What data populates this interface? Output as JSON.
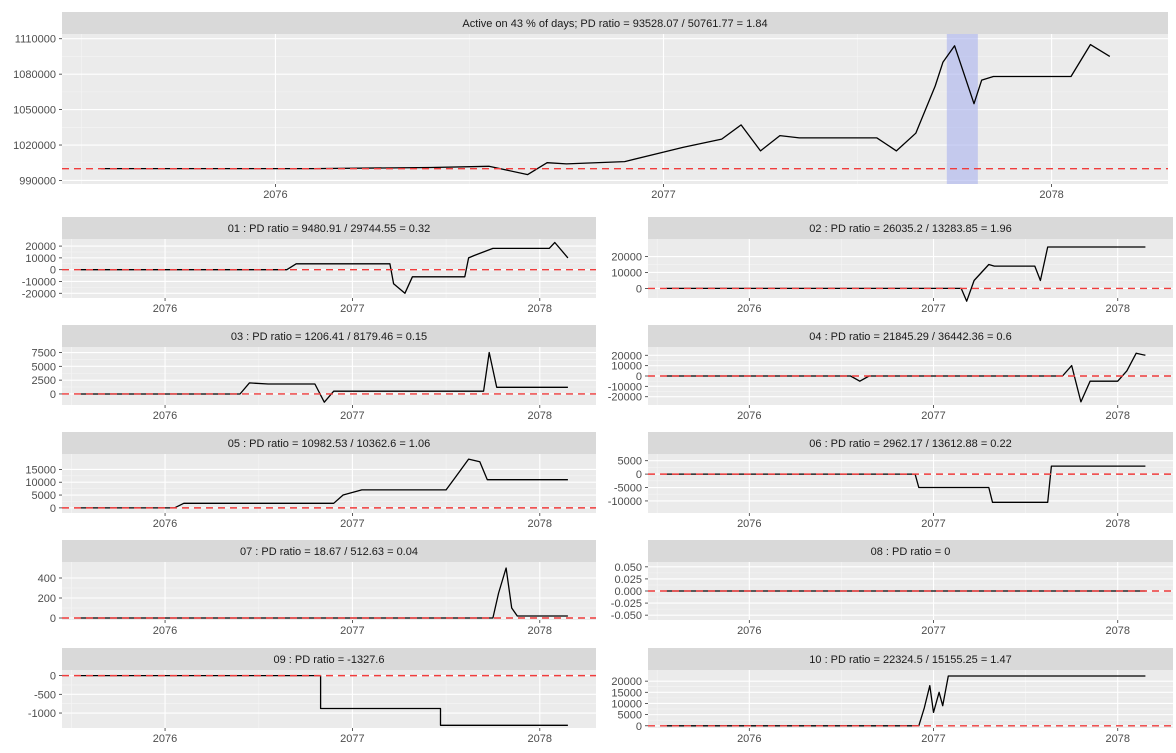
{
  "chart_data": [
    {
      "id": "overall",
      "type": "line",
      "title": "Active on 43 % of days; PD ratio =  93528.07 / 50761.77 = 1.84",
      "xlim": [
        2075.45,
        2078.3
      ],
      "ylim": [
        987000,
        1114000
      ],
      "xticks": [
        2076,
        2077,
        2078
      ],
      "xtick_labels": [
        "2076",
        "2077",
        "2078"
      ],
      "yticks": [
        990000,
        1020000,
        1050000,
        1080000,
        1110000
      ],
      "ytick_labels": [
        "990000",
        "1020000",
        "1050000",
        "1080000",
        "1110000"
      ],
      "baseline": 1000000,
      "highlight_x": [
        2077.73,
        2077.81
      ],
      "x": [
        2075.55,
        2076.1,
        2076.4,
        2076.55,
        2076.65,
        2076.7,
        2076.75,
        2076.9,
        2077.0,
        2077.05,
        2077.15,
        2077.2,
        2077.25,
        2077.3,
        2077.35,
        2077.55,
        2077.6,
        2077.65,
        2077.7,
        2077.72,
        2077.75,
        2077.8,
        2077.82,
        2077.85,
        2078.05,
        2078.1,
        2078.15
      ],
      "y": [
        1000000,
        1000000,
        1001000,
        1002000,
        995000,
        1005000,
        1004000,
        1006000,
        1014000,
        1018000,
        1025000,
        1037000,
        1015000,
        1028000,
        1026000,
        1026000,
        1015000,
        1030000,
        1070000,
        1090000,
        1104000,
        1055000,
        1075000,
        1078000,
        1078000,
        1105000,
        1095000
      ]
    },
    {
      "id": "01",
      "type": "line",
      "title": "01 : PD ratio =  9480.91 / 29744.55 = 0.32",
      "xlim": [
        2075.45,
        2078.3
      ],
      "ylim": [
        -24000,
        26000
      ],
      "xticks": [
        2076,
        2077,
        2078
      ],
      "xtick_labels": [
        "2076",
        "2077",
        "2078"
      ],
      "yticks": [
        -20000,
        -10000,
        0,
        10000,
        20000
      ],
      "ytick_labels": [
        "-20000",
        "-10000",
        "0",
        "10000",
        "20000"
      ],
      "baseline": 0,
      "x": [
        2075.55,
        2076.65,
        2076.7,
        2076.75,
        2077.2,
        2077.22,
        2077.28,
        2077.32,
        2077.6,
        2077.62,
        2077.65,
        2077.75,
        2078.05,
        2078.08,
        2078.15
      ],
      "y": [
        0,
        0,
        5000,
        5000,
        5000,
        -12000,
        -20000,
        -6000,
        -6000,
        10000,
        12000,
        18000,
        18000,
        23000,
        10000
      ]
    },
    {
      "id": "02",
      "type": "line",
      "title": "02 : PD ratio =  26035.2 / 13283.85 = 1.96",
      "xlim": [
        2075.45,
        2078.3
      ],
      "ylim": [
        -6000,
        31000
      ],
      "xticks": [
        2076,
        2077,
        2078
      ],
      "xtick_labels": [
        "2076",
        "2077",
        "2078"
      ],
      "yticks": [
        0,
        10000,
        20000
      ],
      "ytick_labels": [
        "0",
        "10000",
        "20000"
      ],
      "baseline": 0,
      "x": [
        2075.55,
        2077.15,
        2077.18,
        2077.22,
        2077.3,
        2077.33,
        2077.55,
        2077.58,
        2077.62,
        2078.15
      ],
      "y": [
        0,
        0,
        -8000,
        5000,
        15000,
        14000,
        14000,
        5000,
        26000,
        26000
      ]
    },
    {
      "id": "03",
      "type": "line",
      "title": "03 : PD ratio =  1206.41 / 8179.46 = 0.15",
      "xlim": [
        2075.45,
        2078.3
      ],
      "ylim": [
        -2000,
        8500
      ],
      "xticks": [
        2076,
        2077,
        2078
      ],
      "xtick_labels": [
        "2076",
        "2077",
        "2078"
      ],
      "yticks": [
        0,
        2500,
        5000,
        7500
      ],
      "ytick_labels": [
        "0",
        "2500",
        "5000",
        "7500"
      ],
      "baseline": 0,
      "x": [
        2075.55,
        2076.4,
        2076.45,
        2076.55,
        2076.8,
        2076.85,
        2076.9,
        2077.7,
        2077.73,
        2077.77,
        2077.8,
        2078.15
      ],
      "y": [
        0,
        0,
        2000,
        1800,
        1800,
        -1500,
        500,
        500,
        7500,
        1200,
        1200,
        1200
      ]
    },
    {
      "id": "04",
      "type": "line",
      "title": "04 : PD ratio =  21845.29 / 36442.36 = 0.6",
      "xlim": [
        2075.45,
        2078.3
      ],
      "ylim": [
        -28000,
        28000
      ],
      "xticks": [
        2076,
        2077,
        2078
      ],
      "xtick_labels": [
        "2076",
        "2077",
        "2078"
      ],
      "yticks": [
        -20000,
        -10000,
        0,
        10000,
        20000
      ],
      "ytick_labels": [
        "-20000",
        "-10000",
        "0",
        "10000",
        "20000"
      ],
      "baseline": 0,
      "x": [
        2075.55,
        2076.55,
        2076.6,
        2076.65,
        2077.7,
        2077.75,
        2077.8,
        2077.85,
        2078.0,
        2078.05,
        2078.1,
        2078.15
      ],
      "y": [
        0,
        0,
        -5000,
        0,
        0,
        10000,
        -25000,
        -5000,
        -5000,
        5000,
        22000,
        20000
      ]
    },
    {
      "id": "05",
      "type": "line",
      "title": "05 : PD ratio =  10982.53 / 10362.6 = 1.06",
      "xlim": [
        2075.45,
        2078.3
      ],
      "ylim": [
        -2000,
        21000
      ],
      "xticks": [
        2076,
        2077,
        2078
      ],
      "xtick_labels": [
        "2076",
        "2077",
        "2078"
      ],
      "yticks": [
        0,
        5000,
        10000,
        15000
      ],
      "ytick_labels": [
        "0",
        "5000",
        "10000",
        "15000"
      ],
      "baseline": 0,
      "x": [
        2075.55,
        2076.05,
        2076.1,
        2076.9,
        2076.95,
        2077.05,
        2077.5,
        2077.55,
        2077.62,
        2077.68,
        2077.72,
        2078.15
      ],
      "y": [
        0,
        0,
        1800,
        1800,
        5000,
        7000,
        7000,
        12000,
        19000,
        18000,
        11000,
        11000
      ]
    },
    {
      "id": "06",
      "type": "line",
      "title": "06 : PD ratio =  2962.17 / 13612.88 = 0.22",
      "xlim": [
        2075.45,
        2078.3
      ],
      "ylim": [
        -14500,
        7500
      ],
      "xticks": [
        2076,
        2077,
        2078
      ],
      "xtick_labels": [
        "2076",
        "2077",
        "2078"
      ],
      "yticks": [
        -10000,
        -5000,
        0,
        5000
      ],
      "ytick_labels": [
        "-10000",
        "-5000",
        "0",
        "5000"
      ],
      "baseline": 0,
      "x": [
        2075.55,
        2076.9,
        2076.92,
        2077.3,
        2077.32,
        2077.62,
        2077.64,
        2077.68,
        2077.7,
        2078.15
      ],
      "y": [
        0,
        0,
        -5000,
        -5000,
        -10500,
        -10500,
        3000,
        3000,
        3000,
        3000
      ]
    },
    {
      "id": "07",
      "type": "line",
      "title": "07 : PD ratio =  18.67 / 512.63 = 0.04",
      "xlim": [
        2075.45,
        2078.3
      ],
      "ylim": [
        -20,
        560
      ],
      "xticks": [
        2076,
        2077,
        2078
      ],
      "xtick_labels": [
        "2076",
        "2077",
        "2078"
      ],
      "yticks": [
        0,
        200,
        400
      ],
      "ytick_labels": [
        "0",
        "200",
        "400"
      ],
      "baseline": 0,
      "x": [
        2075.55,
        2077.75,
        2077.78,
        2077.82,
        2077.85,
        2077.88,
        2078.15
      ],
      "y": [
        0,
        0,
        250,
        500,
        100,
        20,
        20
      ]
    },
    {
      "id": "08",
      "type": "line",
      "title": "08 : PD ratio =  0",
      "xlim": [
        2075.45,
        2078.3
      ],
      "ylim": [
        -0.06,
        0.06
      ],
      "xticks": [
        2076,
        2077,
        2078
      ],
      "xtick_labels": [
        "2076",
        "2077",
        "2078"
      ],
      "yticks": [
        -0.05,
        -0.025,
        0,
        0.025,
        0.05
      ],
      "ytick_labels": [
        "-0.050",
        "-0.025",
        "0.000",
        "0.025",
        "0.050"
      ],
      "baseline": 0,
      "x": [
        2075.55,
        2078.15
      ],
      "y": [
        0,
        0
      ]
    },
    {
      "id": "09",
      "type": "line",
      "title": "09 : PD ratio =  -1327.6",
      "xlim": [
        2075.45,
        2078.3
      ],
      "ylim": [
        -1400,
        150
      ],
      "xticks": [
        2076,
        2077,
        2078
      ],
      "xtick_labels": [
        "2076",
        "2077",
        "2078"
      ],
      "yticks": [
        -1000,
        -500,
        0
      ],
      "ytick_labels": [
        "-1000",
        "-500",
        "0"
      ],
      "baseline": 0,
      "x": [
        2075.55,
        2076.83,
        2076.83,
        2077.47,
        2077.47,
        2078.15
      ],
      "y": [
        0,
        0,
        -880,
        -880,
        -1327.6,
        -1327.6
      ]
    },
    {
      "id": "10",
      "type": "line",
      "title": "10 : PD ratio =  22324.5 / 15155.25 = 1.47",
      "xlim": [
        2075.45,
        2078.3
      ],
      "ylim": [
        -1000,
        25000
      ],
      "xticks": [
        2076,
        2077,
        2078
      ],
      "xtick_labels": [
        "2076",
        "2077",
        "2078"
      ],
      "yticks": [
        0,
        5000,
        10000,
        15000,
        20000
      ],
      "ytick_labels": [
        "0",
        "5000",
        "10000",
        "15000",
        "20000"
      ],
      "baseline": 0,
      "x": [
        2075.55,
        2076.92,
        2076.95,
        2076.98,
        2077.0,
        2077.03,
        2077.05,
        2077.08,
        2078.15
      ],
      "y": [
        0,
        0,
        8000,
        18000,
        6000,
        15000,
        9000,
        22300,
        22300
      ]
    }
  ]
}
